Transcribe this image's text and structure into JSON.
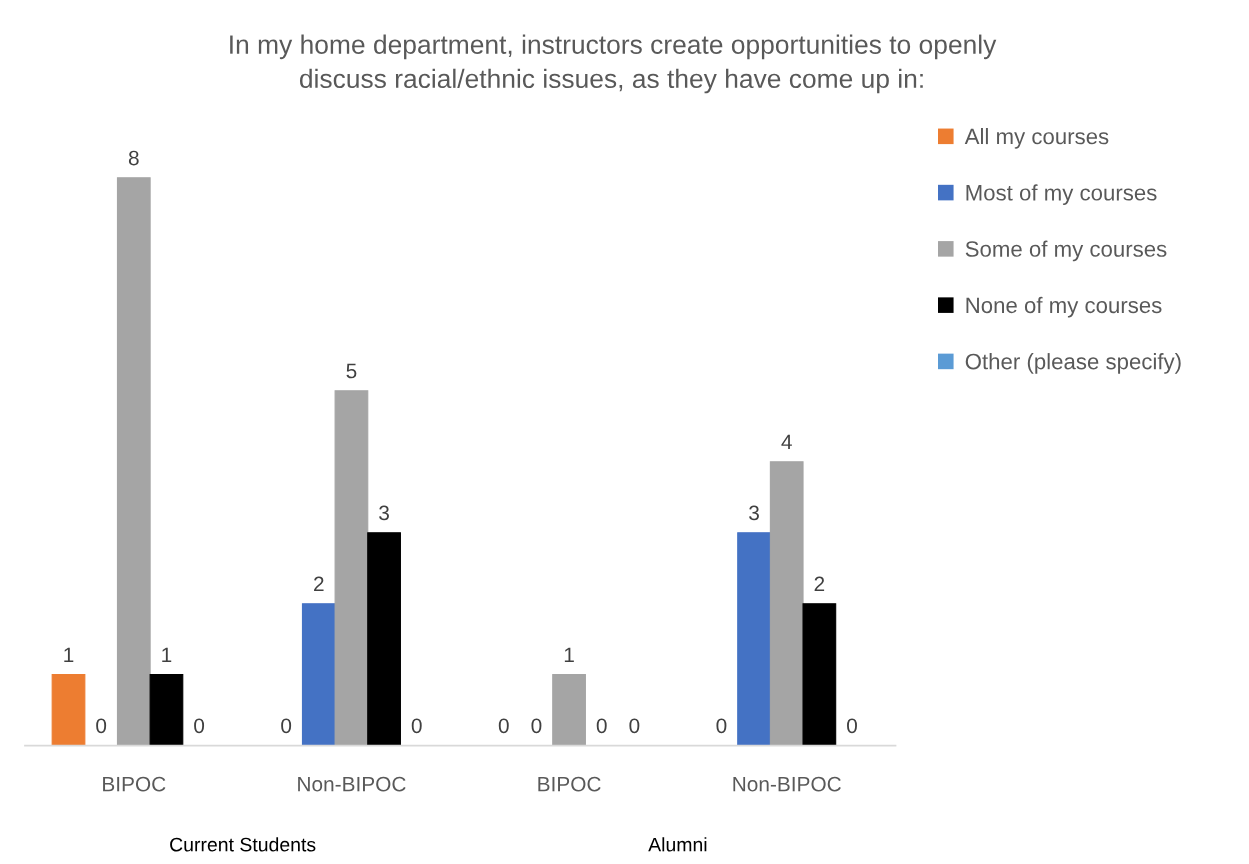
{
  "chart_data": {
    "type": "bar",
    "title": "In my home department, instructors create opportunities to openly\ndiscuss racial/ethnic issues, as they have come up in:",
    "categories": [
      "BIPOC",
      "Non-BIPOC",
      "BIPOC",
      "Non-BIPOC"
    ],
    "series": [
      {
        "name": "All my courses",
        "color": "#ed7d31",
        "values": [
          1,
          0,
          0,
          0
        ]
      },
      {
        "name": "Most of my courses",
        "color": "#4472c4",
        "values": [
          0,
          2,
          0,
          3
        ]
      },
      {
        "name": "Some of my courses",
        "color": "#a5a5a5",
        "values": [
          8,
          5,
          1,
          4
        ]
      },
      {
        "name": "None of my courses",
        "color": "#000000",
        "values": [
          1,
          3,
          0,
          2
        ]
      },
      {
        "name": "Other (please specify)",
        "color": "#5b9bd5",
        "values": [
          0,
          0,
          0,
          0
        ]
      }
    ],
    "data_labels": true,
    "grid": false,
    "legend": "right",
    "annotations": [
      "Current Students",
      "Alumni"
    ]
  }
}
